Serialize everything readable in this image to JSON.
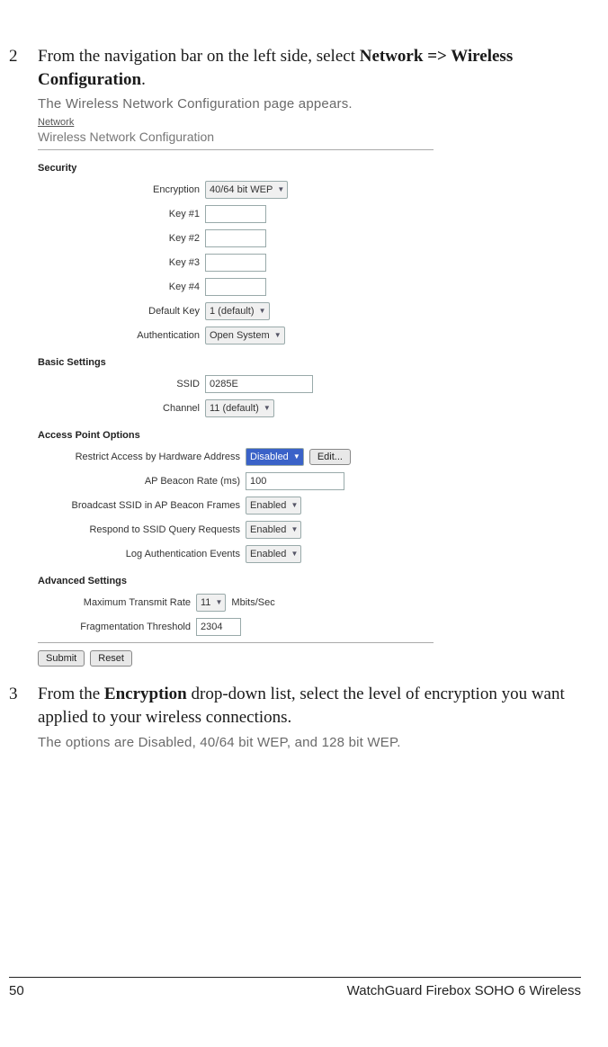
{
  "step2": {
    "num": "2",
    "text_pre": "From the navigation bar on the left side, select ",
    "bold1": "Network",
    "arrow": " => ",
    "bold2": "Wireless Configuration",
    "text_post": ".",
    "result": "The Wireless Network Configuration page appears."
  },
  "screenshot": {
    "breadcrumb": "Network",
    "title": "Wireless Network Configuration",
    "security": {
      "header": "Security",
      "encryption_label": "Encryption",
      "encryption_value": "40/64 bit WEP",
      "key1_label": "Key #1",
      "key1_value": "",
      "key2_label": "Key #2",
      "key2_value": "",
      "key3_label": "Key #3",
      "key3_value": "",
      "key4_label": "Key #4",
      "key4_value": "",
      "defaultkey_label": "Default Key",
      "defaultkey_value": "1 (default)",
      "auth_label": "Authentication",
      "auth_value": "Open System"
    },
    "basic": {
      "header": "Basic Settings",
      "ssid_label": "SSID",
      "ssid_value": "0285E",
      "channel_label": "Channel",
      "channel_value": "11 (default)"
    },
    "ap": {
      "header": "Access Point Options",
      "restrict_label": "Restrict Access by Hardware Address",
      "restrict_value": "Disabled",
      "edit_label": "Edit...",
      "beacon_label": "AP Beacon Rate (ms)",
      "beacon_value": "100",
      "broadcast_label": "Broadcast SSID in AP Beacon Frames",
      "broadcast_value": "Enabled",
      "respond_label": "Respond to SSID Query Requests",
      "respond_value": "Enabled",
      "log_label": "Log Authentication Events",
      "log_value": "Enabled"
    },
    "advanced": {
      "header": "Advanced Settings",
      "maxrate_label": "Maximum Transmit Rate",
      "maxrate_value": "11",
      "maxrate_unit": "Mbits/Sec",
      "frag_label": "Fragmentation Threshold",
      "frag_value": "2304"
    },
    "buttons": {
      "submit": "Submit",
      "reset": "Reset"
    }
  },
  "step3": {
    "num": "3",
    "text_pre": "From the ",
    "bold1": "Encryption",
    "text_mid": " drop-down list, select the level of encryption you want applied to your wireless connections.",
    "result": "The options are Disabled, 40/64 bit WEP, and 128 bit WEP."
  },
  "footer": {
    "page": "50",
    "title": "WatchGuard Firebox SOHO 6 Wireless"
  }
}
